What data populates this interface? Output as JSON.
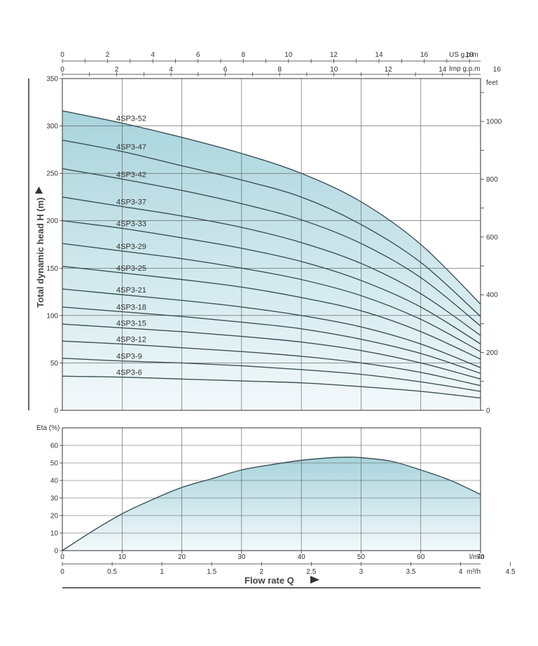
{
  "chart_data": [
    {
      "type": "line",
      "ylabel": "Total dynamic head   H (m)",
      "y_unit_right": "feet",
      "x_unit": "l/min",
      "top_axis_labels": [
        "US g.p.m",
        "Imp g.p.m"
      ],
      "xlim": [
        0,
        70
      ],
      "ylim": [
        0,
        350
      ],
      "y_ticks": [
        0,
        50,
        100,
        150,
        200,
        250,
        300,
        350
      ],
      "y_right_ticks": [
        0,
        200,
        400,
        600,
        800,
        1000
      ],
      "x_ticks": [
        0,
        10,
        20,
        30,
        40,
        50,
        60,
        70
      ],
      "us_gpm_ticks": [
        0,
        2,
        4,
        6,
        8,
        10,
        12,
        14,
        16,
        18
      ],
      "imp_gpm_ticks": [
        0,
        2,
        4,
        6,
        8,
        10,
        12,
        14,
        16
      ],
      "grid": true,
      "x": [
        0,
        10,
        20,
        30,
        40,
        50,
        60,
        70
      ],
      "series": [
        {
          "name": "4SP3-52",
          "values": [
            316,
            303,
            288,
            271,
            250,
            220,
            175,
            112
          ]
        },
        {
          "name": "4SP3-47",
          "values": [
            285,
            273,
            258,
            243,
            225,
            196,
            156,
            99
          ]
        },
        {
          "name": "4SP3-42",
          "values": [
            255,
            244,
            232,
            218,
            201,
            176,
            140,
            89
          ]
        },
        {
          "name": "4SP3-37",
          "values": [
            225,
            215,
            205,
            193,
            177,
            155,
            123,
            79
          ]
        },
        {
          "name": "4SP3-33",
          "values": [
            200,
            192,
            182,
            171,
            157,
            137,
            109,
            70
          ]
        },
        {
          "name": "4SP3-29",
          "values": [
            176,
            168,
            160,
            150,
            138,
            121,
            96,
            62
          ]
        },
        {
          "name": "4SP3-25",
          "values": [
            152,
            145,
            138,
            130,
            119,
            105,
            83,
            54
          ]
        },
        {
          "name": "4SP3-21",
          "values": [
            128,
            122,
            116,
            109,
            100,
            88,
            70,
            45
          ]
        },
        {
          "name": "4SP3-18",
          "values": [
            109,
            104,
            99,
            93,
            86,
            75,
            60,
            39
          ]
        },
        {
          "name": "4SP3-15",
          "values": [
            91,
            87,
            83,
            78,
            72,
            63,
            50,
            33
          ]
        },
        {
          "name": "4SP3-12",
          "values": [
            73,
            70,
            66,
            62,
            57,
            50,
            40,
            26
          ]
        },
        {
          "name": "4SP3-9",
          "values": [
            55,
            52,
            50,
            47,
            43,
            38,
            30,
            20
          ]
        },
        {
          "name": "4SP3-6",
          "values": [
            36,
            35,
            33,
            31,
            29,
            25,
            20,
            13
          ]
        }
      ]
    },
    {
      "type": "area",
      "ylabel": "Eta (%)",
      "xlabel": "Flow rate  Q",
      "x_unit_lmin": "l/min",
      "x_unit_m3h": "m³/h",
      "xlim": [
        0,
        70
      ],
      "ylim": [
        0,
        70
      ],
      "y_ticks": [
        0,
        10,
        20,
        30,
        40,
        50,
        60
      ],
      "x_ticks": [
        0,
        10,
        20,
        30,
        40,
        50,
        60,
        70
      ],
      "m3h_ticks": [
        "0",
        "0.5",
        "1",
        "1.5",
        "2",
        "2.5",
        "3",
        "3.5",
        "4",
        "4.5"
      ],
      "grid": true,
      "x": [
        0,
        5,
        10,
        15,
        20,
        25,
        30,
        35,
        40,
        45,
        48,
        50,
        55,
        60,
        65,
        70
      ],
      "values": [
        0,
        11,
        21,
        29,
        36,
        41,
        46,
        49,
        51.5,
        53,
        53.3,
        53,
        51,
        46,
        40,
        32
      ]
    }
  ]
}
